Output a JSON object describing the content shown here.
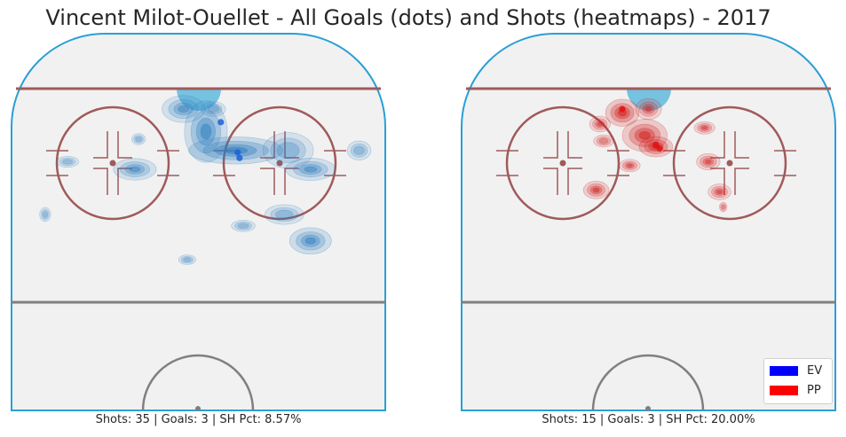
{
  "title": "Vincent Milot-Ouellet - All Goals (dots) and Shots (heatmaps) - 2017",
  "chart_data": [
    {
      "type": "heatmap",
      "panel": "even strength",
      "series_color": "#1f5fd6",
      "heat_color": "#2f7fc1",
      "stats": "Shots: 35 | Goals: 3 | SH Pct: 8.57%",
      "goals": [
        {
          "x": 0.56,
          "y": 0.235
        },
        {
          "x": 0.605,
          "y": 0.315
        },
        {
          "x": 0.61,
          "y": 0.33
        }
      ],
      "shot_density": [
        {
          "x": 0.6,
          "y": 0.31,
          "sx": 0.07,
          "sy": 0.02,
          "w": 1.0
        },
        {
          "x": 0.52,
          "y": 0.26,
          "sx": 0.035,
          "sy": 0.05,
          "w": 0.8
        },
        {
          "x": 0.46,
          "y": 0.2,
          "sx": 0.04,
          "sy": 0.025,
          "w": 0.55
        },
        {
          "x": 0.8,
          "y": 0.36,
          "sx": 0.045,
          "sy": 0.02,
          "w": 0.6
        },
        {
          "x": 0.74,
          "y": 0.31,
          "sx": 0.05,
          "sy": 0.035,
          "w": 0.45
        },
        {
          "x": 0.33,
          "y": 0.36,
          "sx": 0.04,
          "sy": 0.02,
          "w": 0.55
        },
        {
          "x": 0.34,
          "y": 0.28,
          "sx": 0.015,
          "sy": 0.012,
          "w": 0.3
        },
        {
          "x": 0.8,
          "y": 0.55,
          "sx": 0.035,
          "sy": 0.022,
          "w": 0.75
        },
        {
          "x": 0.73,
          "y": 0.48,
          "sx": 0.04,
          "sy": 0.02,
          "w": 0.4
        },
        {
          "x": 0.93,
          "y": 0.31,
          "sx": 0.025,
          "sy": 0.02,
          "w": 0.35
        },
        {
          "x": 0.62,
          "y": 0.51,
          "sx": 0.025,
          "sy": 0.012,
          "w": 0.35
        },
        {
          "x": 0.47,
          "y": 0.6,
          "sx": 0.018,
          "sy": 0.01,
          "w": 0.35
        },
        {
          "x": 0.09,
          "y": 0.48,
          "sx": 0.012,
          "sy": 0.015,
          "w": 0.3
        },
        {
          "x": 0.15,
          "y": 0.34,
          "sx": 0.025,
          "sy": 0.012,
          "w": 0.25
        },
        {
          "x": 0.54,
          "y": 0.2,
          "sx": 0.025,
          "sy": 0.015,
          "w": 0.4
        }
      ]
    },
    {
      "type": "heatmap",
      "panel": "power play",
      "series_color": "#e01010",
      "heat_color": "#d42020",
      "stats": "Shots: 15 | Goals: 3 | SH Pct: 20.00%",
      "goals": [
        {
          "x": 0.43,
          "y": 0.2
        },
        {
          "x": 0.52,
          "y": 0.295
        },
        {
          "x": 0.53,
          "y": 0.305
        }
      ],
      "shot_density": [
        {
          "x": 0.43,
          "y": 0.21,
          "sx": 0.025,
          "sy": 0.02,
          "w": 1.0
        },
        {
          "x": 0.49,
          "y": 0.27,
          "sx": 0.035,
          "sy": 0.025,
          "w": 0.9
        },
        {
          "x": 0.52,
          "y": 0.3,
          "sx": 0.025,
          "sy": 0.015,
          "w": 1.0
        },
        {
          "x": 0.37,
          "y": 0.24,
          "sx": 0.02,
          "sy": 0.015,
          "w": 0.5
        },
        {
          "x": 0.38,
          "y": 0.285,
          "sx": 0.02,
          "sy": 0.012,
          "w": 0.45
        },
        {
          "x": 0.5,
          "y": 0.2,
          "sx": 0.025,
          "sy": 0.02,
          "w": 0.5
        },
        {
          "x": 0.45,
          "y": 0.35,
          "sx": 0.02,
          "sy": 0.012,
          "w": 0.5
        },
        {
          "x": 0.36,
          "y": 0.415,
          "sx": 0.022,
          "sy": 0.015,
          "w": 0.7
        },
        {
          "x": 0.65,
          "y": 0.25,
          "sx": 0.02,
          "sy": 0.012,
          "w": 0.5
        },
        {
          "x": 0.66,
          "y": 0.34,
          "sx": 0.022,
          "sy": 0.015,
          "w": 0.55
        },
        {
          "x": 0.69,
          "y": 0.42,
          "sx": 0.022,
          "sy": 0.015,
          "w": 0.5
        },
        {
          "x": 0.7,
          "y": 0.46,
          "sx": 0.008,
          "sy": 0.01,
          "w": 0.35
        }
      ]
    }
  ],
  "legend": [
    {
      "label": "EV",
      "color": "#0000ff"
    },
    {
      "label": "PP",
      "color": "#ff0000"
    }
  ]
}
